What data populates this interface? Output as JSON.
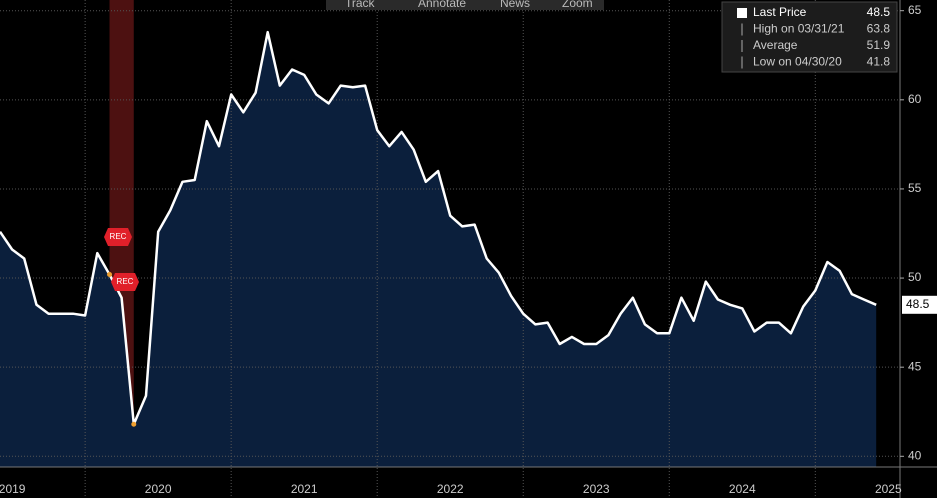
{
  "chart_data": {
    "type": "area",
    "toolbar": [
      "Track",
      "Annotate",
      "News",
      "Zoom"
    ],
    "legend": [
      {
        "label": "Last Price",
        "value": 48.5
      },
      {
        "label": "High on 03/31/21",
        "value": 63.8
      },
      {
        "label": "Average",
        "value": 51.9
      },
      {
        "label": "Low on 04/30/20",
        "value": 41.8
      }
    ],
    "annotations": [
      "REC",
      "REC"
    ],
    "shaded_range": [
      2020.167,
      2020.333
    ],
    "x": [
      2019.417,
      2019.5,
      2019.583,
      2019.667,
      2019.75,
      2019.833,
      2019.917,
      2020.0,
      2020.083,
      2020.167,
      2020.25,
      2020.333,
      2020.417,
      2020.5,
      2020.583,
      2020.667,
      2020.75,
      2020.833,
      2020.917,
      2021.0,
      2021.083,
      2021.167,
      2021.25,
      2021.333,
      2021.417,
      2021.5,
      2021.583,
      2021.667,
      2021.75,
      2021.833,
      2021.917,
      2022.0,
      2022.083,
      2022.167,
      2022.25,
      2022.333,
      2022.417,
      2022.5,
      2022.583,
      2022.667,
      2022.75,
      2022.833,
      2022.917,
      2023.0,
      2023.083,
      2023.167,
      2023.25,
      2023.333,
      2023.417,
      2023.5,
      2023.583,
      2023.667,
      2023.75,
      2023.833,
      2023.917,
      2024.0,
      2024.083,
      2024.167,
      2024.25,
      2024.333,
      2024.417,
      2024.5,
      2024.583,
      2024.667,
      2024.75,
      2024.833,
      2024.917,
      2025.0,
      2025.083,
      2025.167,
      2025.25,
      2025.333,
      2025.417
    ],
    "series": [
      {
        "name": "Last Price",
        "color": "#ffffff",
        "fill": "#0b1f3c",
        "values": [
          52.6,
          51.6,
          51.1,
          48.5,
          48.0,
          48.0,
          48.0,
          47.9,
          51.4,
          50.2,
          48.9,
          41.8,
          43.4,
          52.6,
          53.8,
          55.4,
          55.5,
          58.8,
          57.4,
          60.3,
          59.3,
          60.4,
          63.8,
          60.8,
          61.7,
          61.4,
          60.3,
          59.8,
          60.8,
          60.7,
          60.8,
          58.3,
          57.4,
          58.2,
          57.2,
          55.4,
          56.0,
          53.5,
          52.9,
          53.0,
          51.1,
          50.3,
          49.0,
          48.0,
          47.4,
          47.5,
          46.3,
          46.7,
          46.3,
          46.3,
          46.8,
          48.0,
          48.9,
          47.4,
          46.9,
          46.9,
          48.9,
          47.6,
          49.8,
          48.8,
          48.5,
          48.3,
          47.0,
          47.5,
          47.5,
          46.9,
          48.4,
          49.3,
          50.9,
          50.4,
          49.1,
          48.8,
          48.5
        ]
      }
    ],
    "xlim": [
      2019.417,
      2025.58
    ],
    "ylim": [
      39.4,
      65.6
    ],
    "yticks": [
      40,
      45,
      50,
      55,
      60,
      65
    ],
    "xgrid": [
      2020,
      2021,
      2022,
      2023,
      2024,
      2025
    ],
    "xticks": [
      {
        "value": 2019.5,
        "label": "2019"
      },
      {
        "value": 2020.5,
        "label": "2020"
      },
      {
        "value": 2021.5,
        "label": "2021"
      },
      {
        "value": 2022.5,
        "label": "2022"
      },
      {
        "value": 2023.5,
        "label": "2023"
      },
      {
        "value": 2024.5,
        "label": "2024"
      },
      {
        "value": 2025.5,
        "label": "2025"
      }
    ],
    "grid": true
  }
}
